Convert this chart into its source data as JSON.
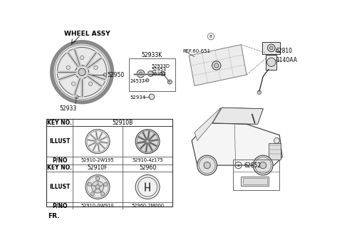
{
  "bg_color": "#ffffff",
  "wheel_assy_label": "WHEEL ASSY",
  "table_key1": "KEY NO.",
  "table_val1": "52910B",
  "table_illust": "ILLUST",
  "table_pno": "P/NO",
  "table_pno1": "52910-2W195",
  "table_pno2": "52910-4z175",
  "table_key2": "52910F",
  "table_val2": "52960",
  "table_pno3": "52910-0W910",
  "table_pno4": "52960-2M000",
  "label_52950": "52950",
  "label_52933": "52933",
  "label_52933K": "52933K",
  "label_52933D": "52933D",
  "label_52953": "52953",
  "label_26352": "26352",
  "label_24537": "24537",
  "label_52934": "52934",
  "label_ref": "REF.60-651",
  "label_62810": "62810",
  "label_1140AA": "1140AA",
  "label_62852": "62852",
  "label_fr": "FR.",
  "lc": "#333333",
  "lc_light": "#666666"
}
